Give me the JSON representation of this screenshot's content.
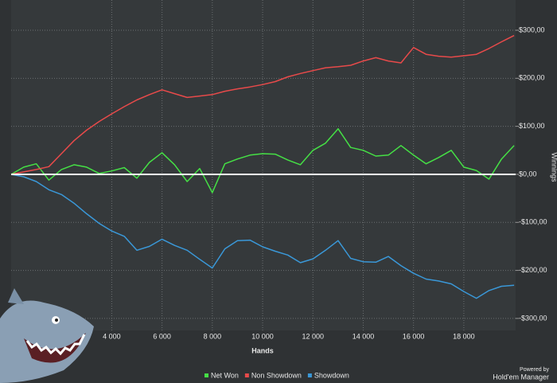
{
  "chart_data": {
    "type": "line",
    "xlabel": "Hands",
    "ylabel": "Winnings",
    "x": [
      0,
      500,
      1000,
      1500,
      2000,
      2500,
      3000,
      3500,
      4000,
      4500,
      5000,
      5500,
      6000,
      6500,
      7000,
      7500,
      8000,
      8500,
      9000,
      9500,
      10000,
      10500,
      11000,
      11500,
      12000,
      12500,
      13000,
      13500,
      14000,
      14500,
      15000,
      15500,
      16000,
      16500,
      17000,
      17500,
      18000,
      18500,
      19000,
      19500,
      20000
    ],
    "series": [
      {
        "name": "Net Won",
        "color": "#45e045",
        "values": [
          0,
          15,
          22,
          -12,
          10,
          20,
          15,
          2,
          7,
          14,
          -8,
          25,
          45,
          20,
          -15,
          12,
          -38,
          22,
          32,
          40,
          43,
          42,
          30,
          20,
          50,
          65,
          95,
          56,
          50,
          38,
          40,
          60,
          40,
          22,
          35,
          50,
          15,
          8,
          -10,
          32,
          60
        ]
      },
      {
        "name": "Non Showdown",
        "color": "#e84a4a",
        "values": [
          0,
          5,
          10,
          16,
          43,
          70,
          92,
          110,
          126,
          141,
          155,
          166,
          176,
          168,
          160,
          163,
          166,
          173,
          178,
          182,
          187,
          193,
          203,
          210,
          216,
          222,
          224,
          227,
          236,
          243,
          236,
          232,
          264,
          250,
          246,
          244,
          247,
          250,
          262,
          276,
          289
        ]
      },
      {
        "name": "Showdown",
        "color": "#3a98d8",
        "values": [
          0,
          -5,
          -15,
          -32,
          -42,
          -60,
          -82,
          -102,
          -118,
          -129,
          -158,
          -150,
          -135,
          -148,
          -158,
          -177,
          -195,
          -155,
          -138,
          -137,
          -151,
          -160,
          -168,
          -184,
          -176,
          -158,
          -138,
          -175,
          -182,
          -183,
          -171,
          -190,
          -206,
          -218,
          -222,
          -228,
          -244,
          -258,
          -242,
          -233,
          -231
        ]
      }
    ],
    "xlim": [
      0,
      20060
    ],
    "ylim": [
      -325,
      363
    ],
    "xticks": [
      {
        "value": 4000,
        "label": "4 000"
      },
      {
        "value": 6000,
        "label": "6 000"
      },
      {
        "value": 8000,
        "label": "8 000"
      },
      {
        "value": 10000,
        "label": "10 000"
      },
      {
        "value": 12000,
        "label": "12 000"
      },
      {
        "value": 14000,
        "label": "14 000"
      },
      {
        "value": 16000,
        "label": "16 000"
      },
      {
        "value": 18000,
        "label": "18 000"
      }
    ],
    "yticks": [
      {
        "value": -300,
        "label": "-$300,00"
      },
      {
        "value": -200,
        "label": "-$200,00"
      },
      {
        "value": -100,
        "label": "-$100,00"
      },
      {
        "value": 0,
        "label": "$0,00"
      },
      {
        "value": 100,
        "label": "$100,00"
      },
      {
        "value": 200,
        "label": "$200,00"
      },
      {
        "value": 300,
        "label": "$300,00"
      }
    ],
    "grid": true,
    "legend": "bottom"
  },
  "branding": {
    "line1": "Powered by",
    "line2": "Hold'em Manager"
  }
}
